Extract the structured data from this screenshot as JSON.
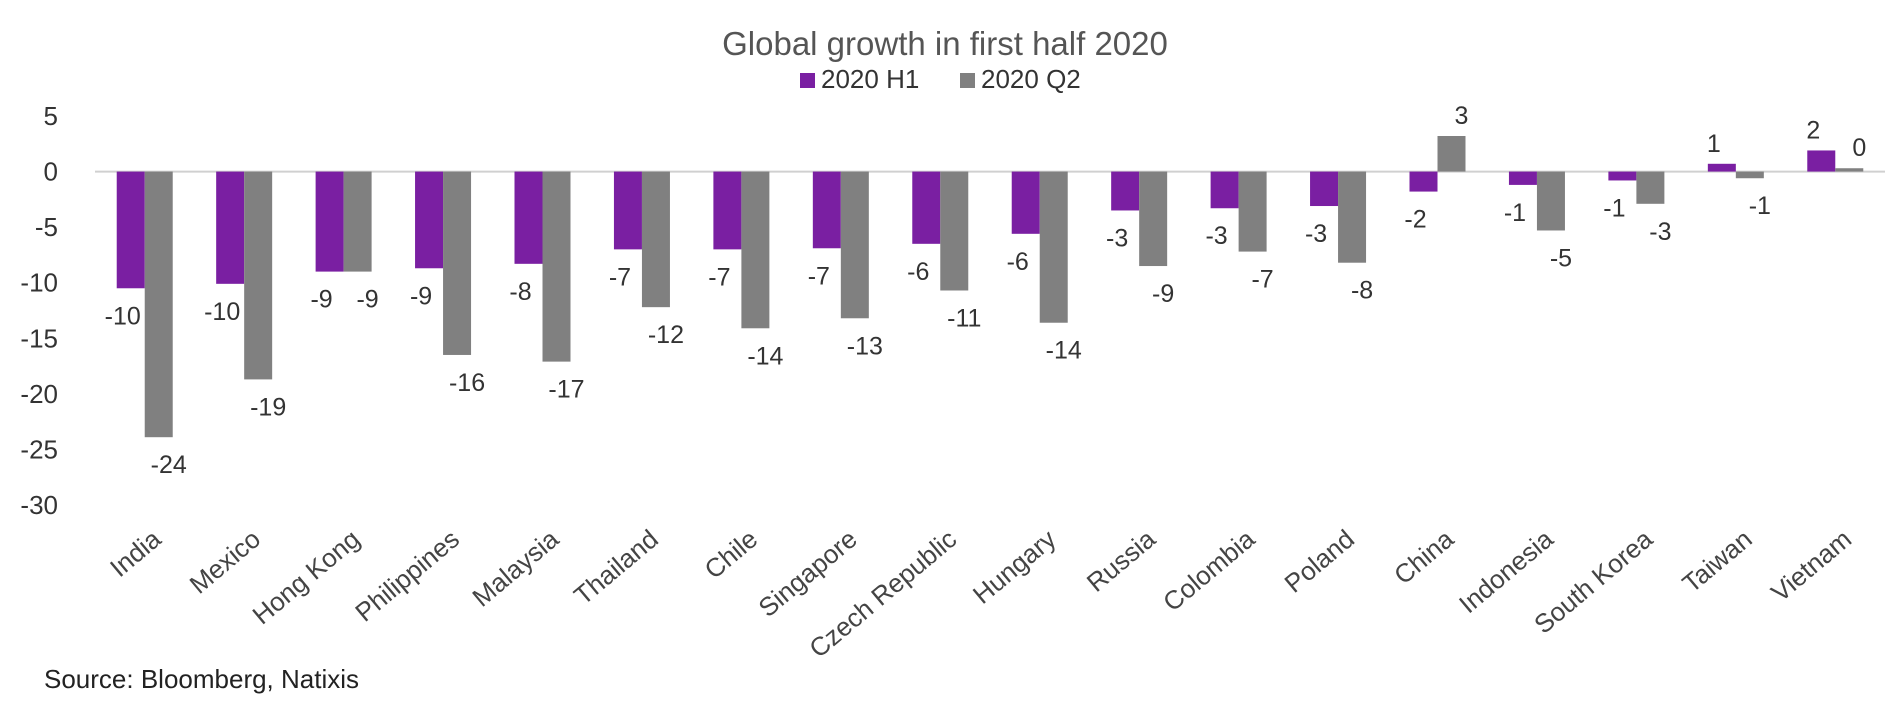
{
  "chart_data": {
    "type": "bar",
    "title": "Global growth in first half 2020",
    "categories": [
      "India",
      "Mexico",
      "Hong Kong",
      "Philippines",
      "Malaysia",
      "Thailand",
      "Chile",
      "Singapore",
      "Czech Republic",
      "Hungary",
      "Russia",
      "Colombia",
      "Poland",
      "China",
      "Indonesia",
      "South Korea",
      "Taiwan",
      "Vietnam"
    ],
    "series": [
      {
        "name": "2020 H1",
        "color": "#7a1fa2",
        "values": [
          -10.5,
          -10.1,
          -9.0,
          -8.7,
          -8.3,
          -7.0,
          -7.0,
          -6.9,
          -6.5,
          -5.6,
          -3.5,
          -3.3,
          -3.1,
          -1.8,
          -1.2,
          -0.8,
          0.7,
          1.9
        ],
        "labels": [
          "-10",
          "-10",
          "-9",
          "-9",
          "-8",
          "-7",
          "-7",
          "-7",
          "-6",
          "-6",
          "-3",
          "-3",
          "-3",
          "-2",
          "-1",
          "-1",
          "1",
          "2"
        ]
      },
      {
        "name": "2020 Q2",
        "color": "#808080",
        "values": [
          -23.9,
          -18.7,
          -9.0,
          -16.5,
          -17.1,
          -12.2,
          -14.1,
          -13.2,
          -10.7,
          -13.6,
          -8.5,
          -7.2,
          -8.2,
          3.2,
          -5.3,
          -2.9,
          -0.6,
          0.3
        ],
        "labels": [
          "-24",
          "-19",
          "-9",
          "-16",
          "-17",
          "-12",
          "-14",
          "-13",
          "-11",
          "-14",
          "-9",
          "-7",
          "-8",
          "3",
          "-5",
          "-3",
          "-1",
          "0"
        ]
      }
    ],
    "ylim": [
      -30,
      5
    ],
    "yticks": [
      5,
      0,
      -5,
      -10,
      -15,
      -20,
      -25,
      -30
    ],
    "xlabel": "",
    "ylabel": "",
    "grid": false,
    "legend_position": "top-center"
  },
  "source_text": "Source: Bloomberg, Natixis"
}
